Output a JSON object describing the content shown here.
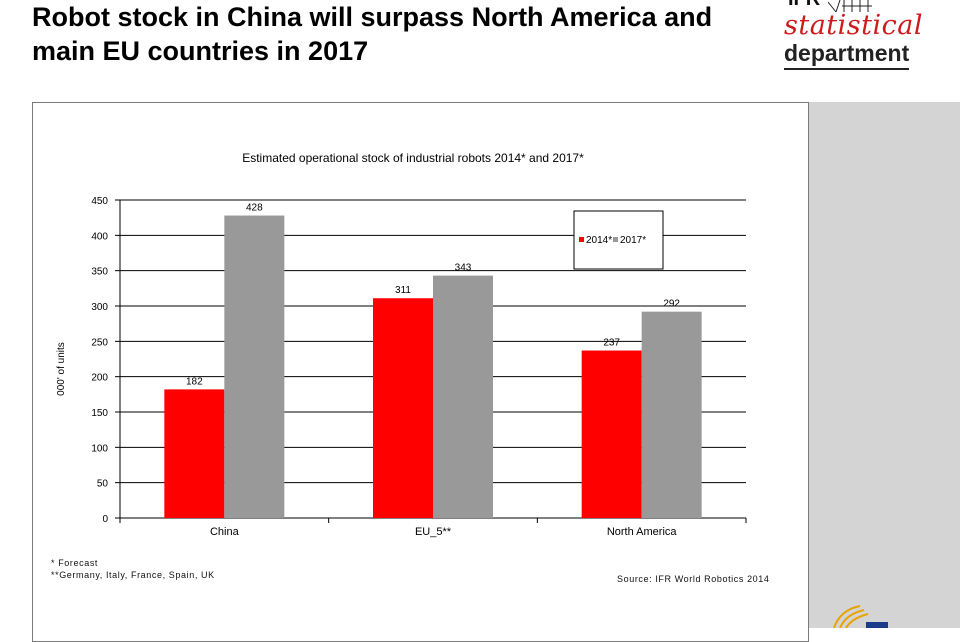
{
  "slide": {
    "title": "Robot stock in China will surpass North America and main EU countries in 2017"
  },
  "logo": {
    "top": "IFR",
    "line1": "statistical",
    "line2": "department",
    "watermark": "statistical"
  },
  "footnotes": {
    "forecast": "*  Forecast",
    "eu5": "**Germany, Italy, France, Spain, UK",
    "source": "Source: IFR World Robotics 2014"
  },
  "colors": {
    "series_2014": "#ff0000",
    "series_2017": "#999999",
    "grid": "#000000",
    "panel": "#d4d4d4",
    "logo_red": "#cc1b1b"
  },
  "chart_data": {
    "type": "bar",
    "title": "Estimated operational stock of industrial robots 2014* and 2017*",
    "ylabel": "000' of units",
    "xlabel": "",
    "categories": [
      "China",
      "EU_5**",
      "North America"
    ],
    "series": [
      {
        "name": "2014*",
        "values": [
          182,
          311,
          237
        ]
      },
      {
        "name": "2017*",
        "values": [
          428,
          343,
          292
        ]
      }
    ],
    "ylim": [
      0,
      450
    ],
    "yticks": [
      0,
      50,
      100,
      150,
      200,
      250,
      300,
      350,
      400,
      450
    ],
    "grid": true,
    "legend": "top-right",
    "data_labels": true
  }
}
